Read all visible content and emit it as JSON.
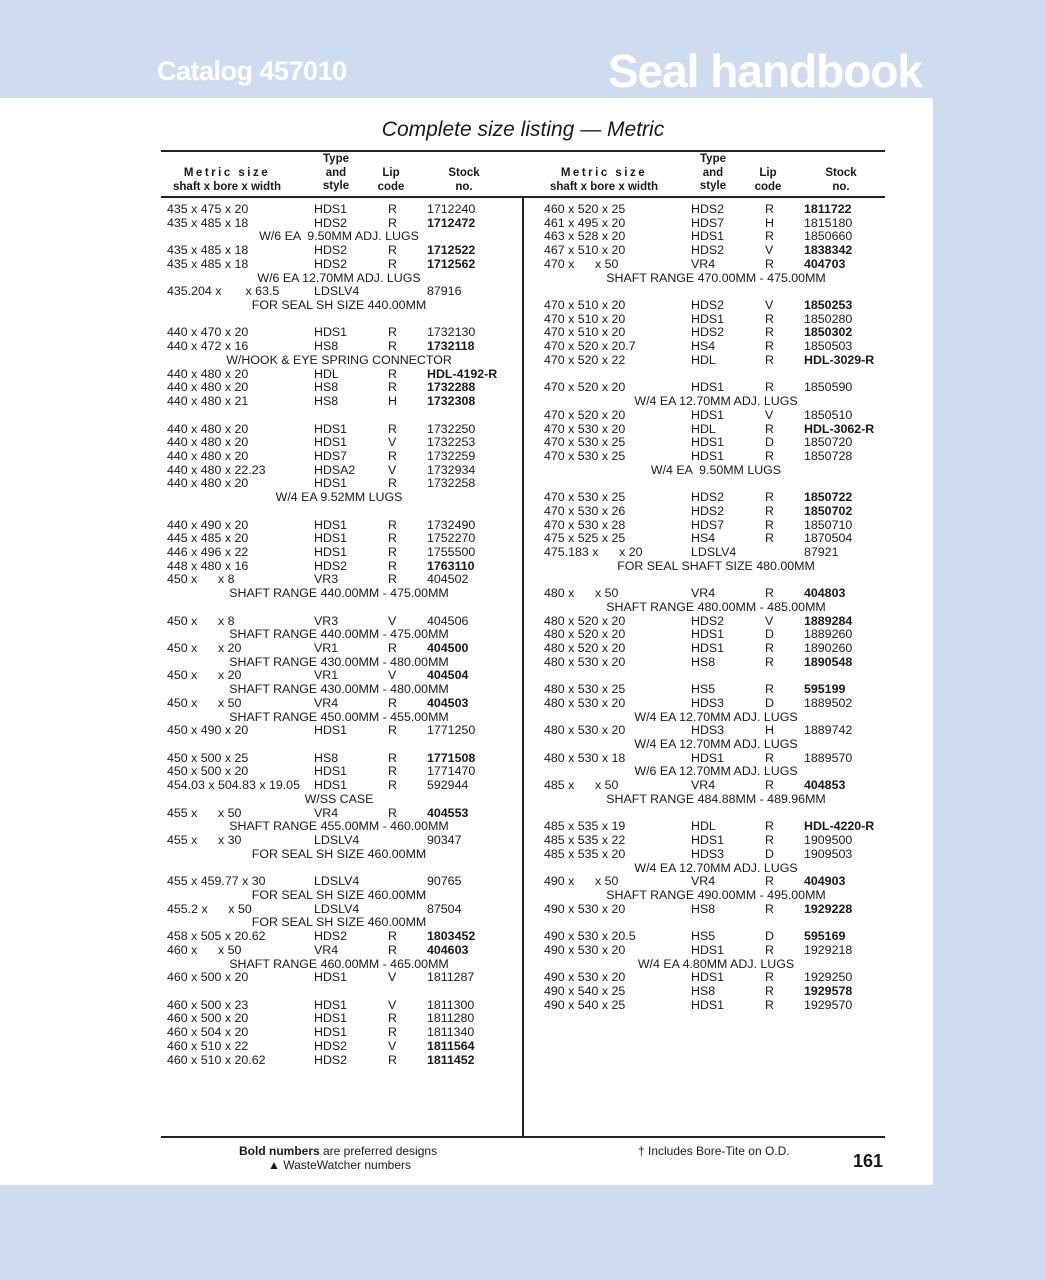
{
  "header": {
    "catalog": "Catalog 457010",
    "brand": "Seal handbook"
  },
  "title": "Complete size listing — Metric",
  "columns": {
    "size_1": "Metric size",
    "size_2": "shaft x bore x width",
    "type_1": "Type",
    "type_2": "and",
    "type_3": "style",
    "lip_1": "Lip",
    "lip_2": "code",
    "stock_1": "Stock",
    "stock_2": "no."
  },
  "left": [
    [
      "435 x 475 x 20",
      "HDS1",
      "R",
      "1712240",
      0
    ],
    [
      "435 x 485 x 18",
      "HDS2",
      "R",
      "1712472",
      1
    ],
    "W/6 EA  9.50MM ADJ. LUGS",
    [
      "435 x 485 x 18",
      "HDS2",
      "R",
      "1712522",
      1
    ],
    [
      "435 x 485 x 18",
      "HDS2",
      "R",
      "1712562",
      1
    ],
    "W/6 EA 12.70MM ADJ. LUGS",
    [
      "435.204 x       x 63.5",
      "LDSLV4",
      "",
      "87916",
      0
    ],
    "FOR SEAL SH SIZE 440.00MM",
    null,
    [
      "440 x 470 x 20",
      "HDS1",
      "R",
      "1732130",
      0
    ],
    [
      "440 x 472 x 16",
      "HS8",
      "R",
      "1732118",
      1
    ],
    "W/HOOK & EYE SPRING CONNECTOR",
    [
      "440 x 480 x 20",
      "HDL",
      "R",
      "HDL-4192-R",
      1
    ],
    [
      "440 x 480 x 20",
      "HS8",
      "R",
      "1732288",
      1
    ],
    [
      "440 x 480 x 21",
      "HS8",
      "H",
      "1732308",
      1
    ],
    null,
    [
      "440 x 480 x 20",
      "HDS1",
      "R",
      "1732250",
      0
    ],
    [
      "440 x 480 x 20",
      "HDS1",
      "V",
      "1732253",
      0
    ],
    [
      "440 x 480 x 20",
      "HDS7",
      "R",
      "1732259",
      0
    ],
    [
      "440 x 480 x 22.23",
      "HDSA2",
      "V",
      "1732934",
      0
    ],
    [
      "440 x 480 x 20",
      "HDS1",
      "R",
      "1732258",
      0
    ],
    "W/4 EA 9.52MM LUGS",
    null,
    [
      "440 x 490 x 20",
      "HDS1",
      "R",
      "1732490",
      0
    ],
    [
      "445 x 485 x 20",
      "HDS1",
      "R",
      "1752270",
      0
    ],
    [
      "446 x 496 x 22",
      "HDS1",
      "R",
      "1755500",
      0
    ],
    [
      "448 x 480 x 16",
      "HDS2",
      "R",
      "1763110",
      1
    ],
    [
      "450 x      x 8",
      "VR3",
      "R",
      "404502",
      0
    ],
    "SHAFT RANGE 440.00MM - 475.00MM",
    null,
    [
      "450 x      x 8",
      "VR3",
      "V",
      "404506",
      0
    ],
    "SHAFT RANGE 440.00MM - 475.00MM",
    [
      "450 x      x 20",
      "VR1",
      "R",
      "404500",
      1
    ],
    "SHAFT RANGE 430.00MM - 480.00MM",
    [
      "450 x      x 20",
      "VR1",
      "V",
      "404504",
      1
    ],
    "SHAFT RANGE 430.00MM - 480.00MM",
    [
      "450 x      x 50",
      "VR4",
      "R",
      "404503",
      1
    ],
    "SHAFT RANGE 450.00MM - 455.00MM",
    [
      "450 x 490 x 20",
      "HDS1",
      "R",
      "1771250",
      0
    ],
    null,
    [
      "450 x 500 x 25",
      "HS8",
      "R",
      "1771508",
      1
    ],
    [
      "450 x 500 x 20",
      "HDS1",
      "R",
      "1771470",
      0
    ],
    [
      "454.03 x 504.83 x 19.05",
      "HDS1",
      "R",
      "592944",
      0
    ],
    "W/SS CASE",
    [
      "455 x      x 50",
      "VR4",
      "R",
      "404553",
      1
    ],
    "SHAFT RANGE 455.00MM - 460.00MM",
    [
      "455 x      x 30",
      "LDSLV4",
      "",
      "90347",
      0
    ],
    "FOR SEAL SH SIZE 460.00MM",
    null,
    [
      "455 x 459.77 x 30",
      "LDSLV4",
      "",
      "90765",
      0
    ],
    "FOR SEAL SH SIZE 460.00MM",
    [
      "455.2 x      x 50",
      "LDSLV4",
      "",
      "87504",
      0
    ],
    "FOR SEAL SH SIZE 460.00MM",
    [
      "458 x 505 x 20.62",
      "HDS2",
      "R",
      "1803452",
      1
    ],
    [
      "460 x      x 50",
      "VR4",
      "R",
      "404603",
      1
    ],
    "SHAFT RANGE 460.00MM - 465.00MM",
    [
      "460 x 500 x 20",
      "HDS1",
      "V",
      "1811287",
      0
    ],
    null,
    [
      "460 x 500 x 23",
      "HDS1",
      "V",
      "1811300",
      0
    ],
    [
      "460 x 500 x 20",
      "HDS1",
      "R",
      "1811280",
      0
    ],
    [
      "460 x 504 x 20",
      "HDS1",
      "R",
      "1811340",
      0
    ],
    [
      "460 x 510 x 22",
      "HDS2",
      "V",
      "1811564",
      1
    ],
    [
      "460 x 510 x 20.62",
      "HDS2",
      "R",
      "1811452",
      1
    ]
  ],
  "right": [
    [
      "460 x 520 x 25",
      "HDS2",
      "R",
      "1811722",
      1
    ],
    [
      "461 x 495 x 20",
      "HDS7",
      "H",
      "1815180",
      0
    ],
    [
      "463 x 528 x 20",
      "HDS1",
      "R",
      "1850660",
      0
    ],
    [
      "467 x 510 x 20",
      "HDS2",
      "V",
      "1838342",
      1
    ],
    [
      "470 x      x 50",
      "VR4",
      "R",
      "404703",
      1
    ],
    "SHAFT RANGE 470.00MM - 475.00MM",
    null,
    [
      "470 x 510 x 20",
      "HDS2",
      "V",
      "1850253",
      1
    ],
    [
      "470 x 510 x 20",
      "HDS1",
      "R",
      "1850280",
      0
    ],
    [
      "470 x 510 x 20",
      "HDS2",
      "R",
      "1850302",
      1
    ],
    [
      "470 x 520 x 20.7",
      "HS4",
      "R",
      "1850503",
      0
    ],
    [
      "470 x 520 x 22",
      "HDL",
      "R",
      "HDL-3029-R",
      1
    ],
    null,
    [
      "470 x 520 x 20",
      "HDS1",
      "R",
      "1850590",
      0
    ],
    "W/4 EA 12.70MM ADJ. LUGS",
    [
      "470 x 520 x 20",
      "HDS1",
      "V",
      "1850510",
      0
    ],
    [
      "470 x 530 x 20",
      "HDL",
      "R",
      "HDL-3062-R",
      1
    ],
    [
      "470 x 530 x 25",
      "HDS1",
      "D",
      "1850720",
      0
    ],
    [
      "470 x 530 x 25",
      "HDS1",
      "R",
      "1850728",
      0
    ],
    "W/4 EA  9.50MM LUGS",
    null,
    [
      "470 x 530 x 25",
      "HDS2",
      "R",
      "1850722",
      1
    ],
    [
      "470 x 530 x 26",
      "HDS2",
      "R",
      "1850702",
      1
    ],
    [
      "470 x 530 x 28",
      "HDS7",
      "R",
      "1850710",
      0
    ],
    [
      "475 x 525 x 25",
      "HS4",
      "R",
      "1870504",
      0
    ],
    [
      "475.183 x      x 20",
      "LDSLV4",
      "",
      "87921",
      0
    ],
    "FOR SEAL SHAFT SIZE 480.00MM",
    null,
    [
      "480 x      x 50",
      "VR4",
      "R",
      "404803",
      1
    ],
    "SHAFT RANGE 480.00MM - 485.00MM",
    [
      "480 x 520 x 20",
      "HDS2",
      "V",
      "1889284",
      1
    ],
    [
      "480 x 520 x 20",
      "HDS1",
      "D",
      "1889260",
      0
    ],
    [
      "480 x 520 x 20",
      "HDS1",
      "R",
      "1890260",
      0
    ],
    [
      "480 x 530 x 20",
      "HS8",
      "R",
      "1890548",
      1
    ],
    null,
    [
      "480 x 530 x 25",
      "HS5",
      "R",
      "595199",
      1
    ],
    [
      "480 x 530 x 20",
      "HDS3",
      "D",
      "1889502",
      0
    ],
    "W/4 EA 12.70MM ADJ. LUGS",
    [
      "480 x 530 x 20",
      "HDS3",
      "H",
      "1889742",
      0
    ],
    "W/4 EA 12.70MM ADJ. LUGS",
    [
      "480 x 530 x 18",
      "HDS1",
      "R",
      "1889570",
      0
    ],
    "W/6 EA 12.70MM ADJ. LUGS",
    [
      "485 x      x 50",
      "VR4",
      "R",
      "404853",
      1
    ],
    "SHAFT RANGE 484.88MM - 489.96MM",
    null,
    [
      "485 x 535 x 19",
      "HDL",
      "R",
      "HDL-4220-R",
      1
    ],
    [
      "485 x 535 x 22",
      "HDS1",
      "R",
      "1909500",
      0
    ],
    [
      "485 x 535 x 20",
      "HDS3",
      "D",
      "1909503",
      0
    ],
    "W/4 EA 12.70MM ADJ. LUGS",
    [
      "490 x      x 50",
      "VR4",
      "R",
      "404903",
      1
    ],
    "SHAFT RANGE 490.00MM - 495.00MM",
    [
      "490 x 530 x 20",
      "HS8",
      "R",
      "1929228",
      1
    ],
    null,
    [
      "490 x 530 x 20.5",
      "HS5",
      "D",
      "595169",
      1
    ],
    [
      "490 x 530 x 20",
      "HDS1",
      "R",
      "1929218",
      0
    ],
    "W/4 EA 4.80MM ADJ. LUGS",
    [
      "490 x 530 x 20",
      "HDS1",
      "R",
      "1929250",
      0
    ],
    [
      "490 x 540 x 25",
      "HS8",
      "R",
      "1929578",
      1
    ],
    [
      "490 x 540 x 25",
      "HDS1",
      "R",
      "1929570",
      0
    ]
  ],
  "footer": {
    "bold_label": "Bold numbers",
    "bold_text": " are preferred designs",
    "wastewatcher": "▲ WasteWatcher numbers",
    "boretite": "† Includes Bore-Tite on O.D.",
    "page_number": "161"
  },
  "colors": {
    "band": "#cfdcf0",
    "text": "#1a1a1a"
  }
}
